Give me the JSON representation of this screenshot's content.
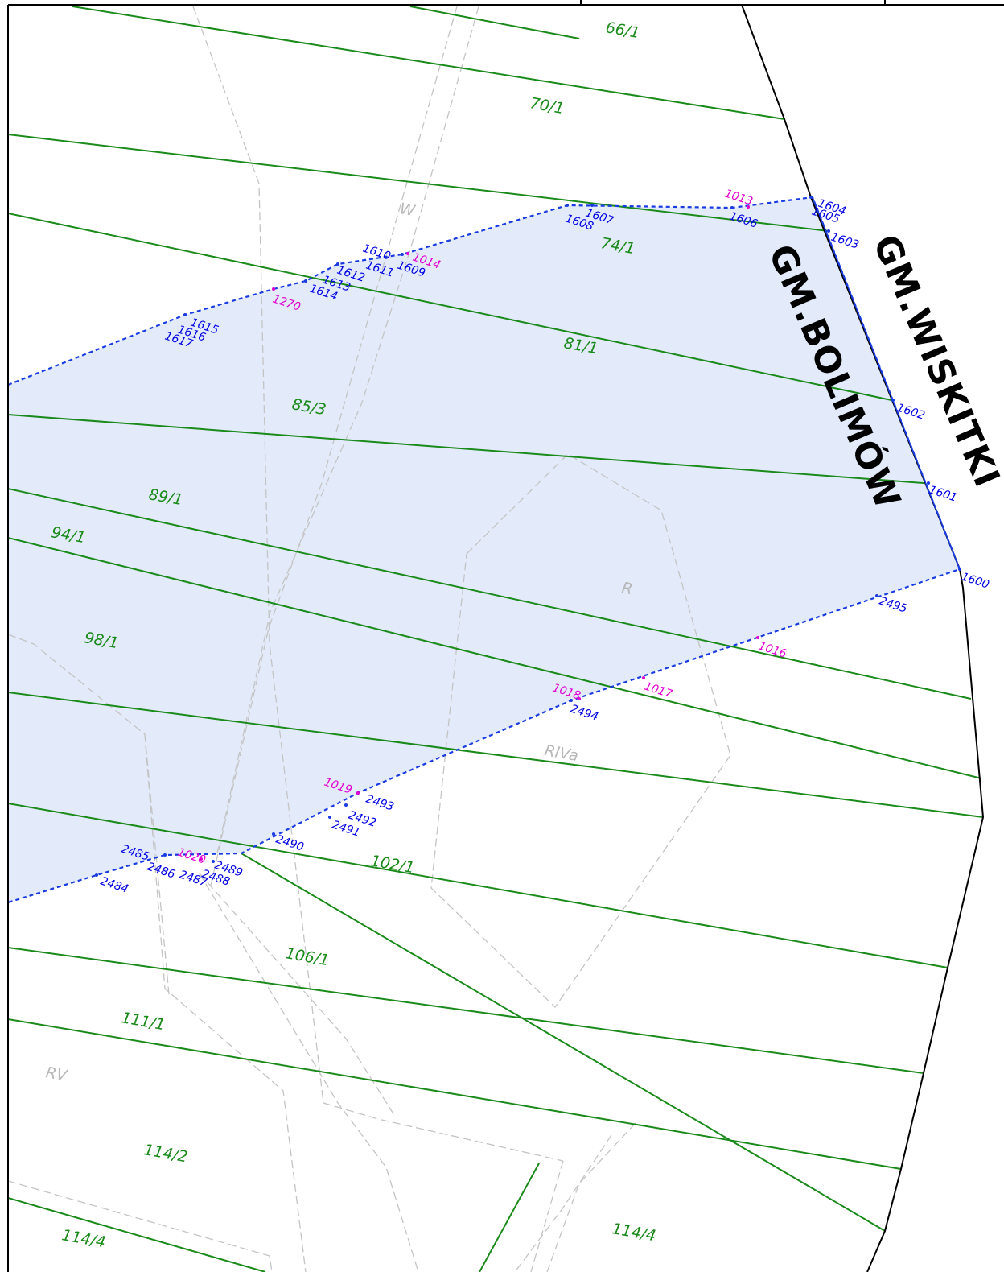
{
  "municipalities": {
    "wiskitki": "GM.WISKITKI",
    "bolimow": "GM.BOLIMÓW"
  },
  "parcels": [
    "66/1",
    "70/1",
    "74/1",
    "81/1",
    "85/3",
    "89/1",
    "94/1",
    "98/1",
    "102/1",
    "106/1",
    "111/1",
    "114/2",
    "114/4",
    "114/4"
  ],
  "land_classes": [
    "W",
    "R",
    "RIVa",
    "RV"
  ],
  "boundary_points": [
    "1600",
    "1601",
    "1602",
    "1603",
    "1604",
    "1605",
    "1606",
    "1607",
    "1608",
    "1609",
    "1610",
    "1611",
    "1612",
    "1613",
    "1614",
    "1615",
    "1616",
    "1617",
    "2484",
    "2485",
    "2486",
    "2487",
    "2488",
    "2489",
    "2490",
    "2491",
    "2492",
    "2493",
    "2494",
    "2495"
  ],
  "intersection_points": [
    "1013",
    "1014",
    "1270",
    "1016",
    "1017",
    "1018",
    "1019",
    "1020"
  ],
  "colors": {
    "parcel_line": "#1a8a1a",
    "area_fill": "#e3ebfb",
    "boundary_dashed": "#1a3be0",
    "gmina_boundary": "#000000",
    "landuse_dashed": "#c4c4c4",
    "point_label_blue": "#0000e0",
    "point_label_magenta": "#e000d0"
  }
}
